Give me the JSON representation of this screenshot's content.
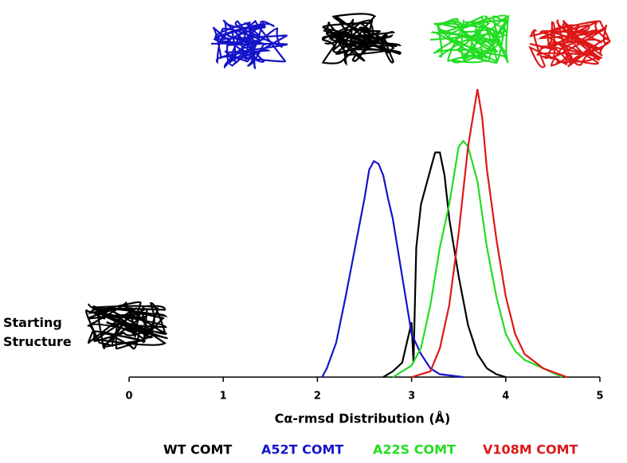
{
  "chart_data": {
    "type": "line",
    "annotation": "Starting Structure",
    "xlabel": "Cα-rmsd Distribution (Å)",
    "xlim": [
      0,
      5
    ],
    "xticks": [
      0,
      1,
      2,
      3,
      4,
      5
    ],
    "ylim": [
      0,
      100
    ],
    "series": [
      {
        "name": "WT COMT",
        "color": "#000000",
        "x": [
          2.7,
          2.8,
          2.9,
          2.95,
          3.0,
          3.02,
          3.05,
          3.1,
          3.2,
          3.25,
          3.3,
          3.35,
          3.4,
          3.5,
          3.6,
          3.7,
          3.8,
          3.9,
          4.0
        ],
        "values": [
          0,
          2,
          5,
          12,
          19,
          5,
          45,
          60,
          72,
          78,
          78,
          70,
          55,
          35,
          18,
          8,
          3,
          1,
          0
        ]
      },
      {
        "name": "A52T COMT",
        "color": "#1414c8",
        "x": [
          2.05,
          2.1,
          2.2,
          2.3,
          2.4,
          2.5,
          2.55,
          2.6,
          2.65,
          2.7,
          2.75,
          2.8,
          2.85,
          2.9,
          2.95,
          3.0,
          3.1,
          3.2,
          3.3,
          3.55
        ],
        "values": [
          0,
          3,
          12,
          28,
          45,
          62,
          72,
          75,
          74,
          70,
          62,
          55,
          45,
          35,
          25,
          15,
          8,
          3,
          1,
          0
        ]
      },
      {
        "name": "A22S COMT",
        "color": "#22dd22",
        "x": [
          2.8,
          3.0,
          3.1,
          3.2,
          3.3,
          3.4,
          3.5,
          3.55,
          3.6,
          3.7,
          3.8,
          3.9,
          4.0,
          4.1,
          4.2,
          4.4,
          4.6
        ],
        "values": [
          0,
          4,
          10,
          25,
          45,
          60,
          80,
          82,
          80,
          68,
          45,
          28,
          15,
          9,
          6,
          3,
          0
        ]
      },
      {
        "name": "V108M COMT",
        "color": "#dd1818",
        "x": [
          3.0,
          3.2,
          3.3,
          3.4,
          3.5,
          3.6,
          3.7,
          3.75,
          3.8,
          3.9,
          4.0,
          4.1,
          4.2,
          4.4,
          4.65
        ],
        "values": [
          0,
          2,
          10,
          25,
          50,
          80,
          100,
          90,
          72,
          48,
          28,
          15,
          8,
          3,
          0
        ]
      }
    ]
  }
}
